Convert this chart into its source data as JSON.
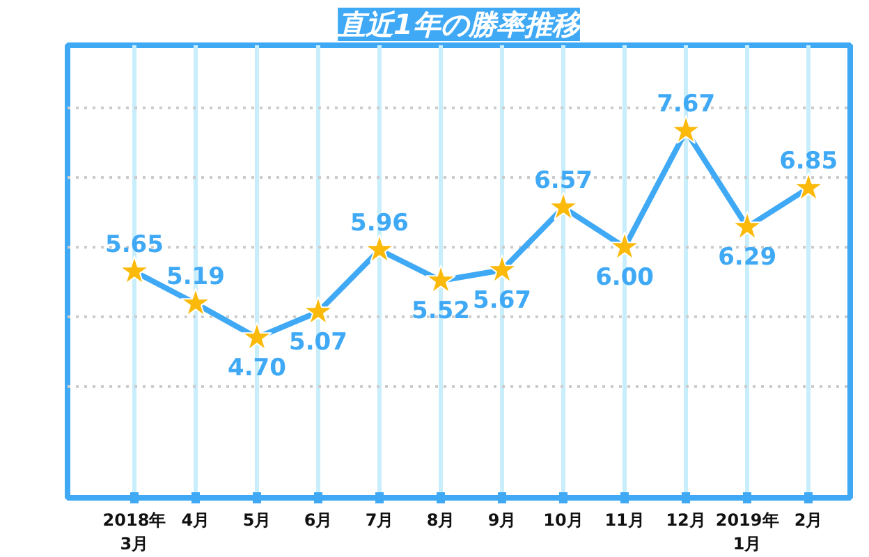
{
  "chart_data": {
    "type": "line",
    "title": "直近1年の勝率推移",
    "categories": [
      "2018年\n3月",
      "4月",
      "5月",
      "6月",
      "7月",
      "8月",
      "9月",
      "10月",
      "11月",
      "12月",
      "2019年\n1月",
      "2月"
    ],
    "series": [
      {
        "color": "#3fa9f5",
        "values": [
          5.65,
          5.19,
          4.7,
          5.07,
          5.96,
          5.52,
          5.67,
          6.57,
          6.0,
          7.67,
          6.29,
          6.85
        ],
        "value_labels": [
          "5.65",
          "5.19",
          "4.70",
          "5.07",
          "5.96",
          "5.52",
          "5.67",
          "6.57",
          "6.00",
          "7.67",
          "6.29",
          "6.85"
        ]
      }
    ],
    "ylim": [
      2.4,
      8.9
    ],
    "yticks": [
      {
        "value": 4,
        "label": null
      },
      {
        "value": 5,
        "label": null
      },
      {
        "value": 6,
        "label": null
      },
      {
        "value": 7,
        "label": null
      },
      {
        "value": 8,
        "label": null
      }
    ],
    "tick_labels": "x",
    "grid": true,
    "marker": "star",
    "line_style": "solid"
  }
}
